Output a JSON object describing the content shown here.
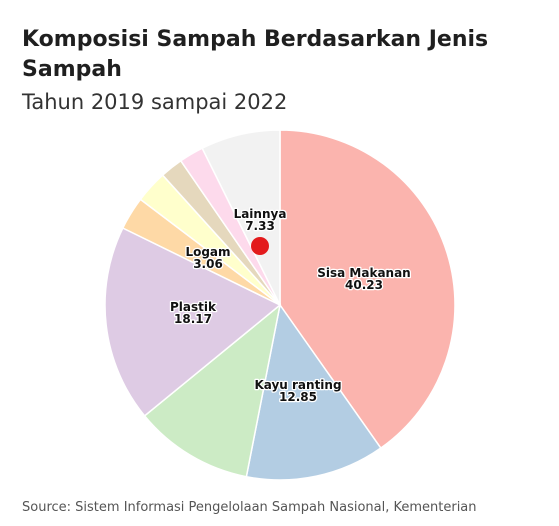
{
  "chart_data": {
    "type": "pie",
    "title": "Komposisi Sampah Berdasarkan Jenis Sampah",
    "subtitle": "Tahun 2019 sampai 2022",
    "source": "Source: Sistem Informasi Pengelolaan Sampah Nasional, Kementerian",
    "slices": [
      {
        "label": "Sisa Makanan",
        "value": 40.23,
        "color": "#fbb4ae",
        "show_label": true
      },
      {
        "label": "Kayu ranting",
        "value": 12.85,
        "color": "#b3cde3",
        "show_label": true
      },
      {
        "label": "",
        "value": 11.0,
        "color": "#ccebc5",
        "show_label": false
      },
      {
        "label": "Plastik",
        "value": 18.17,
        "color": "#decbe4",
        "show_label": true
      },
      {
        "label": "Logam",
        "value": 3.06,
        "color": "#fed9a6",
        "show_label": true
      },
      {
        "label": "",
        "value": 3.0,
        "color": "#ffffcc",
        "show_label": false
      },
      {
        "label": "",
        "value": 2.1,
        "color": "#e5d8bd",
        "show_label": false
      },
      {
        "label": "",
        "value": 2.26,
        "color": "#fddaec",
        "show_label": false
      },
      {
        "label": "Lainnya",
        "value": 7.33,
        "color": "#f2f2f2",
        "show_label": true
      }
    ],
    "highlight": {
      "label": "Lainnya",
      "marker_color": "#e31a1c"
    }
  }
}
